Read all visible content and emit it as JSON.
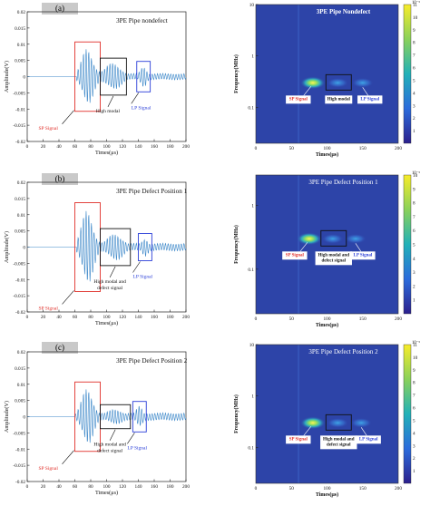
{
  "panels": [
    {
      "tag": "(a)",
      "time_title": "3PE Pipe nondefect",
      "tf_title": "3PE Pipe Nondefect",
      "time_ylabel": "Amplitude(V)",
      "time_xlabel": "Times(μs)",
      "time_yticks": [
        "0.02",
        "0.015",
        "0.01",
        "0.005",
        "0",
        "-0.005",
        "-0.01",
        "-0.015",
        "-0.02"
      ],
      "time_xticks": [
        "0",
        "20",
        "40",
        "60",
        "80",
        "100",
        "120",
        "140",
        "160",
        "180",
        "200"
      ],
      "time_labels": {
        "sp": "SP Signal",
        "high": [
          "High modal"
        ],
        "lp": "LP Signal"
      },
      "tf_ylabel": "Frequency(MHz)",
      "tf_xlabel": "Times(μs)",
      "tf_yticks": [
        "10",
        "1",
        "0.1"
      ],
      "tf_xticks": [
        "0",
        "50",
        "100",
        "150",
        "200"
      ],
      "tf_labels": {
        "sp": "SP Signal",
        "high": [
          "High modal"
        ],
        "lp": "LP Signal"
      },
      "colorbar_exp": "10⁻⁵",
      "colorbar_ticks": [
        "11",
        "10",
        "9",
        "8",
        "7",
        "6",
        "5",
        "4",
        "3",
        "2",
        "1"
      ]
    },
    {
      "tag": "(b)",
      "time_title": "3PE Pipe Defect Position 1",
      "tf_title": "3PE Pipe Defect Position 1",
      "time_ylabel": "Amplitude(V)",
      "time_xlabel": "Times(μs)",
      "time_yticks": [
        "0.02",
        "0.015",
        "0.01",
        "0.005",
        "0",
        "-0.005",
        "-0.01",
        "-0.015",
        "-0.02"
      ],
      "time_xticks": [
        "0",
        "20",
        "40",
        "60",
        "80",
        "100",
        "120",
        "140",
        "160",
        "180",
        "200"
      ],
      "time_labels": {
        "sp": "SP Signal",
        "high": [
          "High modal and",
          "defect signal"
        ],
        "lp": "LP Signal"
      },
      "tf_ylabel": "Frequency(MHz)",
      "tf_xlabel": "Times(μs)",
      "tf_yticks": [
        "1",
        "0.1"
      ],
      "tf_xticks": [
        "0",
        "50",
        "100",
        "150",
        "200"
      ],
      "tf_labels": {
        "sp": "SP Signal",
        "high": [
          "High modal and",
          "defect signal"
        ],
        "lp": "LP Signal"
      },
      "colorbar_exp": "10⁻⁵",
      "colorbar_ticks": [
        "10",
        "9",
        "8",
        "7",
        "6",
        "5",
        "4",
        "3",
        "2",
        "1"
      ]
    },
    {
      "tag": "(c)",
      "time_title": "3PE Pipe Defect Position 2",
      "tf_title": "3PE Pipe Defect Position 2",
      "time_ylabel": "Amplitude(V)",
      "time_xlabel": "Times(μs)",
      "time_yticks": [
        "0.02",
        "0.015",
        "0.01",
        "0.005",
        "0",
        "-0.005",
        "-0.01",
        "-0.015",
        "-0.02"
      ],
      "time_xticks": [
        "0",
        "20",
        "40",
        "60",
        "80",
        "100",
        "120",
        "140",
        "160",
        "180",
        "200"
      ],
      "time_labels": {
        "sp": "SP Signal",
        "high": [
          "High modal and",
          "defect signal"
        ],
        "lp": "LP Signal"
      },
      "tf_ylabel": "Frequency(MHz)",
      "tf_xlabel": "Times(μs)",
      "tf_yticks": [
        "10",
        "1",
        "0.1"
      ],
      "tf_xticks": [
        "0",
        "50",
        "100",
        "150",
        "200"
      ],
      "tf_labels": {
        "sp": "SP Signal",
        "high": [
          "High modal and",
          "defect signal"
        ],
        "lp": "LP Signal"
      },
      "colorbar_exp": "10⁻⁵",
      "colorbar_ticks": [
        "11",
        "10",
        "9",
        "8",
        "7",
        "6",
        "5",
        "4",
        "3",
        "2",
        "1"
      ]
    }
  ],
  "colors": {
    "sp_box": "#e0302a",
    "high_box": "#111111",
    "lp_box": "#2b3fd8",
    "waveform": "#3a86c8",
    "tf_bg": "#2d44a8"
  },
  "chart_data": [
    {
      "type": "line",
      "title": "3PE Pipe nondefect",
      "xlabel": "Times(μs)",
      "ylabel": "Amplitude(V)",
      "xlim": [
        0,
        200
      ],
      "ylim": [
        -0.02,
        0.02
      ],
      "features": {
        "onset_us": 62,
        "sp_window_us": [
          60,
          92
        ],
        "sp_peak_V": 0.0095,
        "high_window_us": [
          92,
          125
        ],
        "high_peak_V": 0.0045,
        "lp_window_us": [
          138,
          155
        ],
        "lp_peak_V": 0.0035,
        "tail_amp_V": 0.001
      }
    },
    {
      "type": "heatmap",
      "title": "3PE Pipe Nondefect",
      "xlabel": "Times(μs)",
      "ylabel": "Frequency(MHz)",
      "xlim": [
        0,
        200
      ],
      "yscale": "log",
      "ylim": [
        0.02,
        10
      ],
      "colorbar_range": [
        0,
        11
      ],
      "colorbar_exp": "1e-5",
      "blobs": [
        {
          "t_us": 80,
          "f_MHz": 0.3,
          "level": 10
        },
        {
          "t_us": 115,
          "f_MHz": 0.3,
          "level": 3
        },
        {
          "t_us": 150,
          "f_MHz": 0.3,
          "level": 4
        }
      ]
    },
    {
      "type": "line",
      "title": "3PE Pipe Defect Position 1",
      "xlabel": "Times(μs)",
      "ylabel": "Amplitude(V)",
      "xlim": [
        0,
        200
      ],
      "ylim": [
        -0.02,
        0.02
      ],
      "features": {
        "onset_us": 62,
        "sp_window_us": [
          60,
          92
        ],
        "sp_peak_V": 0.0125,
        "high_window_us": [
          92,
          130
        ],
        "high_peak_V": 0.0045,
        "lp_window_us": [
          140,
          157
        ],
        "lp_peak_V": 0.003,
        "tail_amp_V": 0.0012
      }
    },
    {
      "type": "heatmap",
      "title": "3PE Pipe Defect Position 1",
      "xlabel": "Times(μs)",
      "ylabel": "Frequency(MHz)",
      "xlim": [
        0,
        200
      ],
      "yscale": "log",
      "ylim": [
        0.02,
        3
      ],
      "colorbar_range": [
        0,
        10
      ],
      "colorbar_exp": "1e-5",
      "blobs": [
        {
          "t_us": 75,
          "f_MHz": 0.3,
          "level": 9
        },
        {
          "t_us": 108,
          "f_MHz": 0.3,
          "level": 3
        },
        {
          "t_us": 140,
          "f_MHz": 0.3,
          "level": 3
        }
      ]
    },
    {
      "type": "line",
      "title": "3PE Pipe Defect Position 2",
      "xlabel": "Times(μs)",
      "ylabel": "Amplitude(V)",
      "xlim": [
        0,
        200
      ],
      "ylim": [
        -0.02,
        0.02
      ],
      "features": {
        "onset_us": 60,
        "sp_window_us": [
          60,
          92
        ],
        "sp_peak_V": 0.0095,
        "high_window_us": [
          92,
          130
        ],
        "high_peak_V": 0.0025,
        "lp_window_us": [
          133,
          150
        ],
        "lp_peak_V": 0.0035,
        "tail_amp_V": 0.0012
      }
    },
    {
      "type": "heatmap",
      "title": "3PE Pipe Defect Position 2",
      "xlabel": "Times(μs)",
      "ylabel": "Frequency(MHz)",
      "xlim": [
        0,
        200
      ],
      "yscale": "log",
      "ylim": [
        0.02,
        10
      ],
      "colorbar_range": [
        0,
        11
      ],
      "colorbar_exp": "1e-5",
      "blobs": [
        {
          "t_us": 80,
          "f_MHz": 0.3,
          "level": 10
        },
        {
          "t_us": 115,
          "f_MHz": 0.3,
          "level": 3
        },
        {
          "t_us": 148,
          "f_MHz": 0.3,
          "level": 3
        }
      ]
    }
  ]
}
